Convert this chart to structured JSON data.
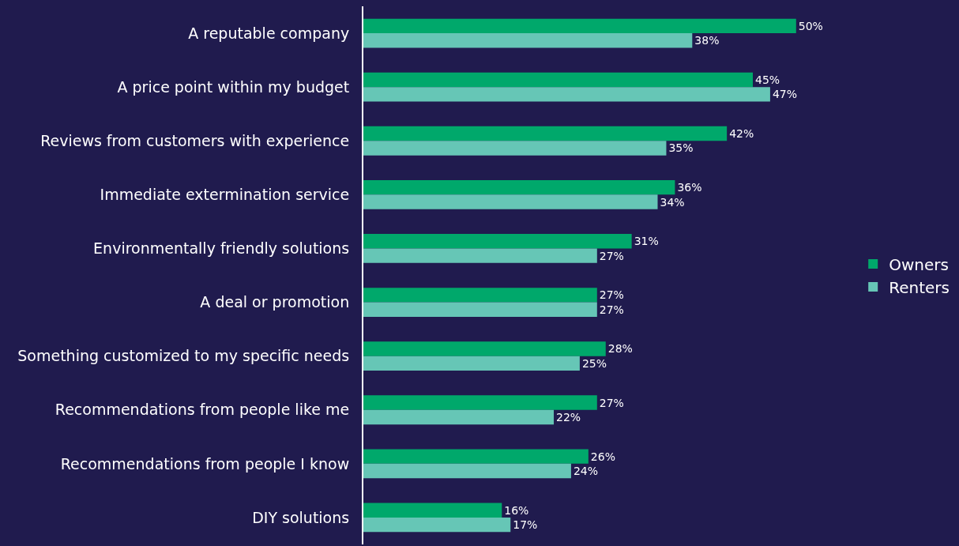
{
  "chart_data": {
    "type": "bar",
    "orientation": "horizontal",
    "categories": [
      "A reputable company",
      "A price point within my budget",
      "Reviews from customers with experience",
      "Immediate extermination service",
      "Environmentally friendly solutions",
      "A deal or promotion",
      "Something customized to my specific needs",
      "Recommendations from people like me",
      "Recommendations from people I know",
      "DIY solutions"
    ],
    "series": [
      {
        "name": "Owners",
        "color": "#00a86b",
        "values": [
          50,
          45,
          42,
          36,
          31,
          27,
          28,
          27,
          26,
          16
        ],
        "value_labels": [
          "50%",
          "45%",
          "42%",
          "36%",
          "31%",
          "27%",
          "28%",
          "27%",
          "26%",
          "16%"
        ]
      },
      {
        "name": "Renters",
        "color": "#66c6b6",
        "values": [
          38,
          47,
          35,
          34,
          27,
          27,
          25,
          22,
          24,
          17
        ],
        "value_labels": [
          "38%",
          "47%",
          "35%",
          "34%",
          "27%",
          "27%",
          "25%",
          "22%",
          "24%",
          "17%"
        ]
      }
    ],
    "tick_labels": "y",
    "legend": "right"
  }
}
